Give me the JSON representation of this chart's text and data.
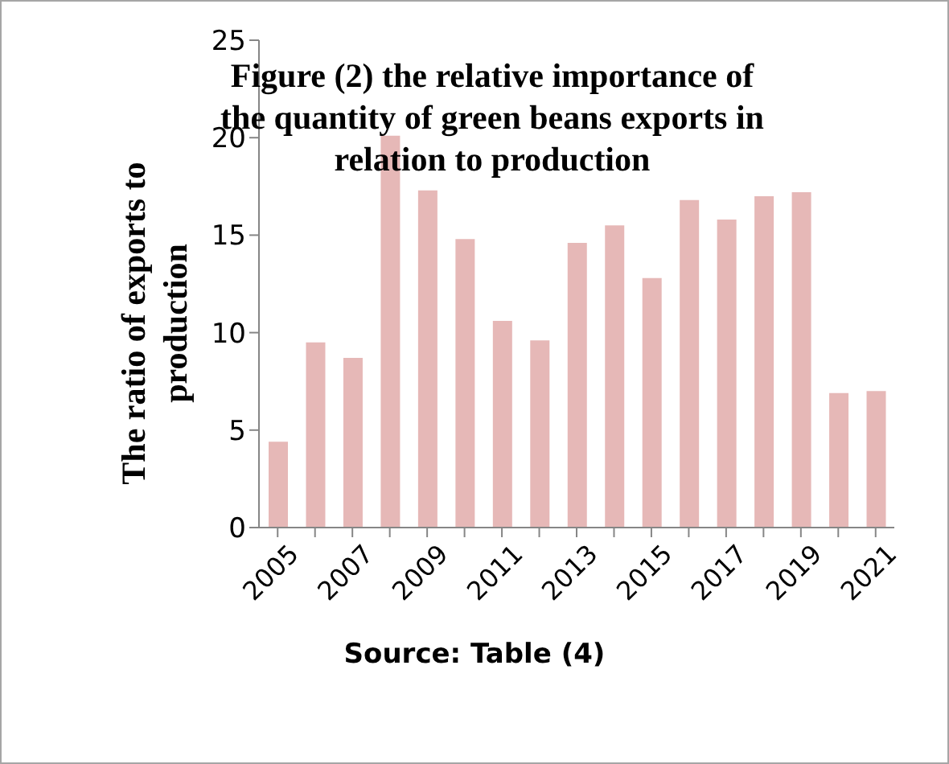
{
  "chart_data": {
    "type": "bar",
    "title": "Figure (2) the relative importance of the quantity of green beans exports in relation to production",
    "ylabel": "The ratio of exports to production",
    "annotations": [
      "Source: Table (4)"
    ],
    "categories": [
      "2005",
      null,
      "2007",
      null,
      "2009",
      null,
      "2011",
      null,
      "2013",
      null,
      "2015",
      null,
      "2017",
      null,
      "2019",
      null,
      "2021"
    ],
    "values": [
      4.4,
      9.5,
      8.7,
      20.1,
      17.3,
      14.8,
      10.6,
      9.6,
      14.6,
      15.5,
      12.8,
      16.8,
      15.8,
      17.0,
      17.2,
      6.9,
      7.0
    ],
    "color": "#e6b8b7",
    "ylim": [
      0,
      25
    ],
    "yticks": [
      0,
      5,
      10,
      15,
      20,
      25
    ],
    "grid": false,
    "legend": false
  }
}
